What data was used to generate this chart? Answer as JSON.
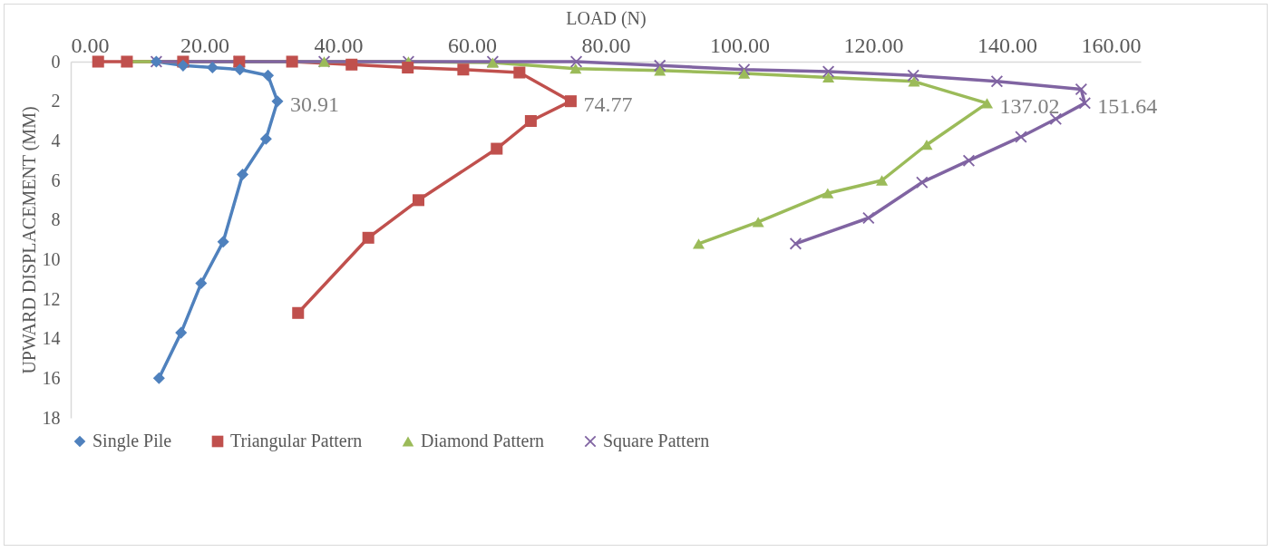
{
  "chart_data": {
    "type": "line",
    "xlabel": "LOAD (N)",
    "ylabel": "UPWARD DISPLACEMENT (MM)",
    "xlim": [
      0,
      160
    ],
    "xticks": [
      {
        "value": 0,
        "label": "0.00"
      },
      {
        "value": 20,
        "label": "20.00"
      },
      {
        "value": 40,
        "label": "40.00"
      },
      {
        "value": 60,
        "label": "60.00"
      },
      {
        "value": 80,
        "label": "80.00"
      },
      {
        "value": 100,
        "label": "100.00"
      },
      {
        "value": 120,
        "label": "120.00"
      },
      {
        "value": 140,
        "label": "140.00"
      },
      {
        "value": 160,
        "label": "160.00"
      }
    ],
    "ylim": [
      18,
      0
    ],
    "yticks": [
      0,
      2,
      4,
      6,
      8,
      10,
      12,
      14,
      16,
      18
    ],
    "grid": false,
    "legend": "bottom",
    "line_style": "solid",
    "series": [
      {
        "name": "Single Pile",
        "color": "#4f81bd",
        "marker": "diamond",
        "x": [
          12.8,
          16.8,
          21.2,
          25.3,
          29.5,
          30.91,
          29.2,
          25.7,
          22.8,
          19.5,
          16.5,
          13.2
        ],
        "values": [
          0,
          0.2,
          0.3,
          0.4,
          0.7,
          2.0,
          3.9,
          5.7,
          9.1,
          11.2,
          13.7,
          16.0
        ]
      },
      {
        "name": "Triangular Pattern",
        "color": "#c0504d",
        "marker": "square",
        "x": [
          4.1,
          8.4,
          16.8,
          25.2,
          33.1,
          42.0,
          50.4,
          58.7,
          67.1,
          74.77,
          68.8,
          63.7,
          52.0,
          44.5,
          34.0
        ],
        "values": [
          0,
          0,
          0,
          0,
          0,
          0.15,
          0.3,
          0.4,
          0.55,
          2.0,
          3.0,
          4.4,
          7.0,
          8.9,
          12.7
        ]
      },
      {
        "name": "Diamond Pattern",
        "color": "#9bbb59",
        "marker": "triangle",
        "x": [
          8.4,
          16.8,
          25.2,
          37.9,
          50.5,
          63.1,
          75.5,
          88.1,
          100.7,
          113.3,
          126.1,
          137.02,
          128.0,
          121.3,
          113.2,
          102.8,
          93.9
        ],
        "values": [
          0,
          0,
          0,
          0,
          0,
          0.05,
          0.35,
          0.45,
          0.6,
          0.8,
          1.0,
          2.1,
          4.2,
          6.0,
          6.65,
          8.1,
          9.2
        ]
      },
      {
        "name": "Square Pattern",
        "color": "#8064a2",
        "marker": "cross",
        "x": [
          12.8,
          25.2,
          37.9,
          50.5,
          63.1,
          75.6,
          88.1,
          100.7,
          113.3,
          126.0,
          138.5,
          151.1,
          151.64,
          147.3,
          142.1,
          134.3,
          127.3,
          119.3,
          108.4
        ],
        "values": [
          0,
          0,
          0,
          0,
          0,
          0,
          0.2,
          0.4,
          0.5,
          0.7,
          1.0,
          1.4,
          2.1,
          2.9,
          3.8,
          5.0,
          6.1,
          7.9,
          9.2
        ]
      }
    ],
    "annotations": [
      {
        "text": "30.91",
        "x": 30.91,
        "y": 2.0
      },
      {
        "text": "74.77",
        "x": 74.77,
        "y": 2.0
      },
      {
        "text": "137.02",
        "x": 137.02,
        "y": 2.1
      },
      {
        "text": "151.64",
        "x": 151.64,
        "y": 2.1
      }
    ]
  }
}
